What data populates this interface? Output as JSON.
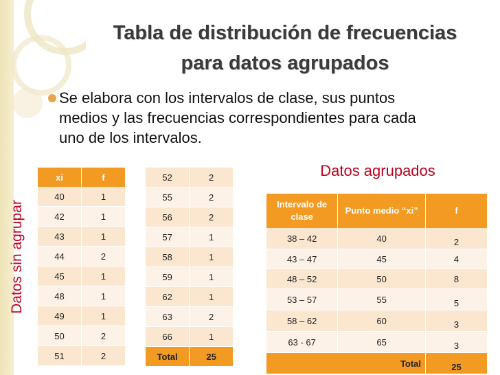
{
  "slide": {
    "title_line1": "Tabla de distribución de frecuencias",
    "title_line2": "para datos agrupados",
    "bullet": "Se elabora con los intervalos de clase, sus puntos medios y las frecuencias correspondientes para cada uno de los intervalos.",
    "side_label": "Datos sin agrupar",
    "grouped_label": "Datos agrupados"
  },
  "ungrouped_table_1": {
    "headers": [
      "xi",
      "f"
    ],
    "rows": [
      [
        "40",
        "1"
      ],
      [
        "42",
        "1"
      ],
      [
        "43",
        "1"
      ],
      [
        "44",
        "2"
      ],
      [
        "45",
        "1"
      ],
      [
        "48",
        "1"
      ],
      [
        "49",
        "1"
      ],
      [
        "50",
        "2"
      ],
      [
        "51",
        "2"
      ]
    ]
  },
  "ungrouped_table_2": {
    "rows": [
      [
        "52",
        "2"
      ],
      [
        "55",
        "2"
      ],
      [
        "56",
        "2"
      ],
      [
        "57",
        "1"
      ],
      [
        "58",
        "1"
      ],
      [
        "59",
        "1"
      ],
      [
        "62",
        "1"
      ],
      [
        "63",
        "2"
      ],
      [
        "66",
        "1"
      ]
    ],
    "total_label": "Total",
    "total_value": "25"
  },
  "grouped_table": {
    "headers": [
      "Intervalo de clase",
      "Punto medio “xi”",
      "f"
    ],
    "rows": [
      [
        "38 – 42",
        "40",
        "2"
      ],
      [
        "43 – 47",
        "45",
        "4"
      ],
      [
        "48 – 52",
        "50",
        "8"
      ],
      [
        "53 – 57",
        "55",
        "5"
      ],
      [
        "58 – 62",
        "60",
        "3"
      ],
      [
        "63  - 67",
        "65",
        "3"
      ]
    ],
    "total_label": "Total",
    "total_value": "25"
  },
  "colors": {
    "accent": "#f39a22",
    "label": "#c0001e",
    "row_light": "#fbe6cf",
    "row_lighter": "#fdf2e7"
  }
}
